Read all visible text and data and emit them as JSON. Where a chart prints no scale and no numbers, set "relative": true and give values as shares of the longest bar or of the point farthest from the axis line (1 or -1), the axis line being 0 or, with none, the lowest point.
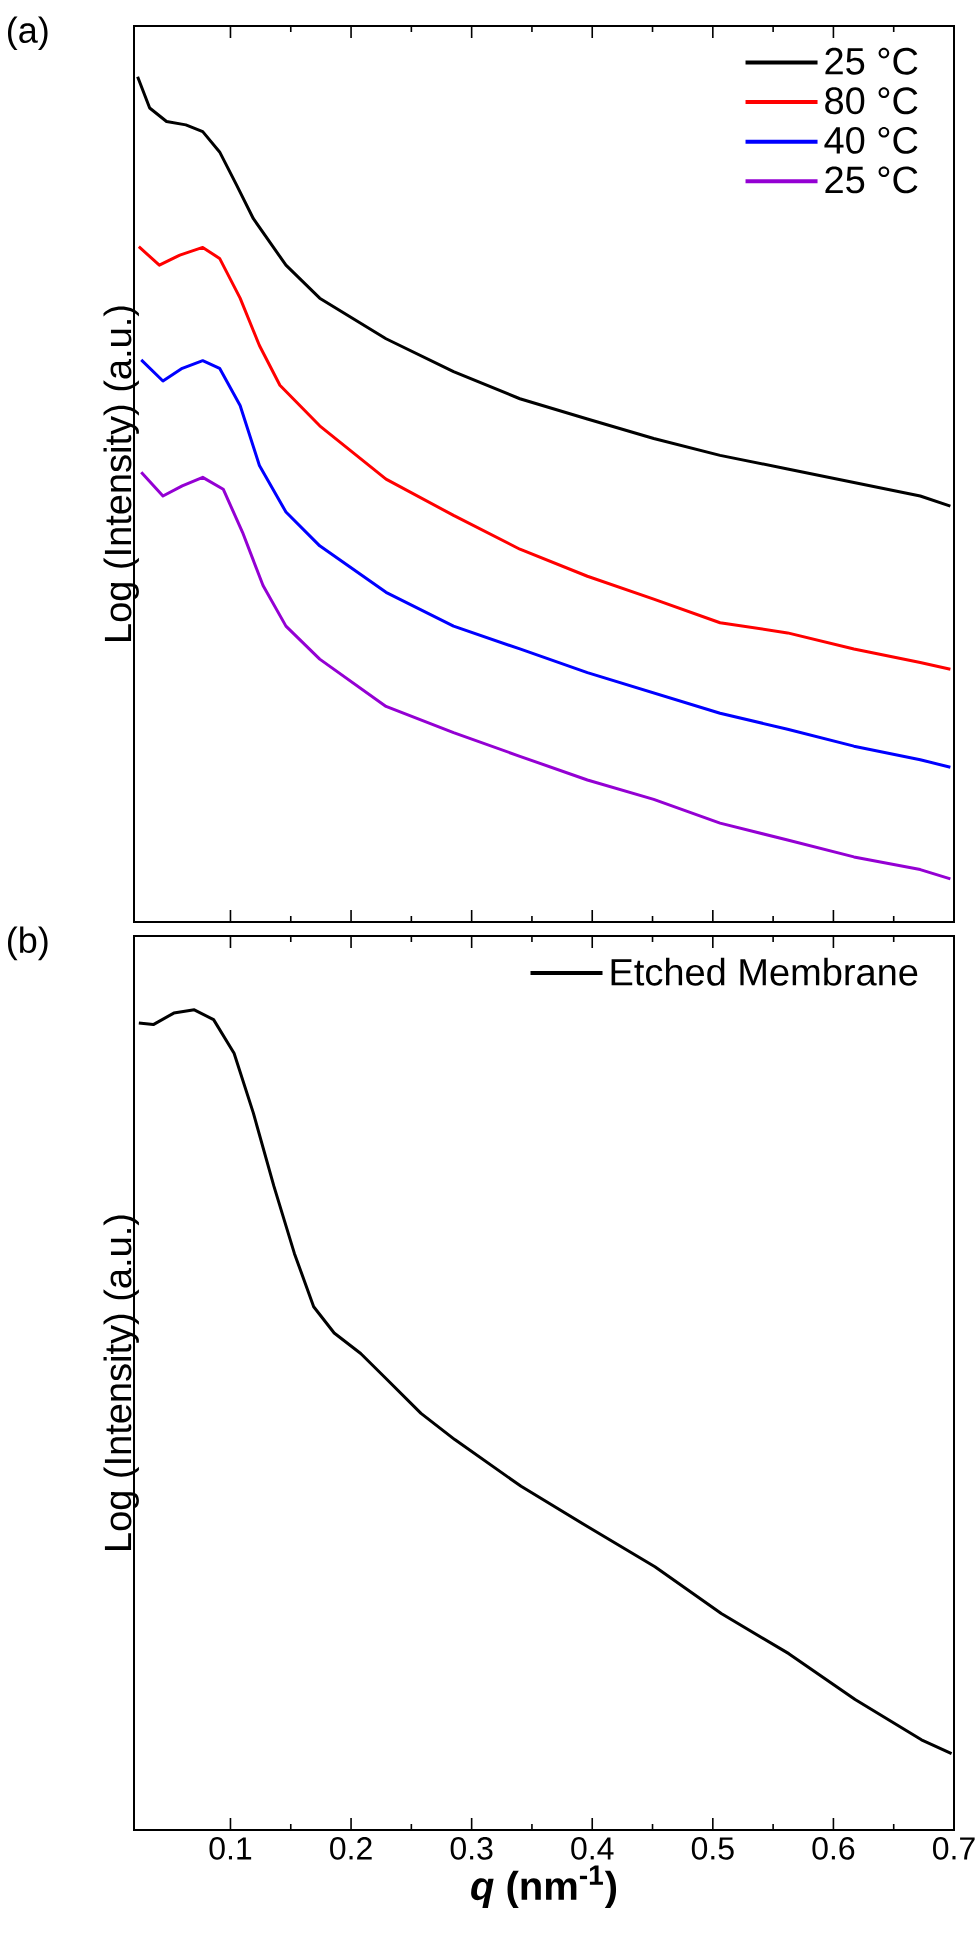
{
  "chart_data": [
    {
      "type": "line",
      "title": "(a)",
      "ylabel": "Log (Intensity) (a.u.)",
      "relative": true,
      "xlim": [
        0.02,
        0.7
      ],
      "xticks": [
        0.1,
        0.2,
        0.3,
        0.4,
        0.5,
        0.6,
        0.7
      ],
      "tick_labels": false,
      "legend": "top right",
      "grid": false,
      "line_style": "solid",
      "marker": "none",
      "series": [
        {
          "name": "25 °C",
          "color": "#000000",
          "x": [
            0.023,
            0.033,
            0.047,
            0.063,
            0.077,
            0.091,
            0.105,
            0.119,
            0.146,
            0.174,
            0.229,
            0.285,
            0.34,
            0.396,
            0.451,
            0.506,
            0.562,
            0.617,
            0.672,
            0.697
          ],
          "values": [
            1.0,
            0.963,
            0.947,
            0.943,
            0.935,
            0.911,
            0.872,
            0.832,
            0.777,
            0.738,
            0.69,
            0.651,
            0.619,
            0.595,
            0.572,
            0.552,
            0.536,
            0.52,
            0.504,
            0.492
          ]
        },
        {
          "name": "80 °C",
          "color": "#ff0000",
          "x": [
            0.024,
            0.041,
            0.058,
            0.077,
            0.091,
            0.108,
            0.124,
            0.141,
            0.174,
            0.229,
            0.285,
            0.34,
            0.396,
            0.451,
            0.506,
            0.562,
            0.617,
            0.672,
            0.697
          ],
          "values": [
            0.799,
            0.777,
            0.789,
            0.798,
            0.785,
            0.738,
            0.682,
            0.635,
            0.587,
            0.524,
            0.481,
            0.441,
            0.409,
            0.382,
            0.354,
            0.342,
            0.323,
            0.307,
            0.299
          ]
        },
        {
          "name": "40 °C",
          "color": "#0000ff",
          "x": [
            0.026,
            0.044,
            0.06,
            0.077,
            0.091,
            0.108,
            0.124,
            0.146,
            0.174,
            0.229,
            0.285,
            0.34,
            0.396,
            0.451,
            0.506,
            0.562,
            0.617,
            0.672,
            0.697
          ],
          "values": [
            0.665,
            0.64,
            0.655,
            0.664,
            0.655,
            0.611,
            0.54,
            0.485,
            0.445,
            0.39,
            0.35,
            0.323,
            0.295,
            0.271,
            0.247,
            0.228,
            0.208,
            0.192,
            0.183
          ]
        },
        {
          "name": "25 °C",
          "color": "#9400d3",
          "x": [
            0.026,
            0.044,
            0.06,
            0.077,
            0.094,
            0.11,
            0.127,
            0.146,
            0.174,
            0.229,
            0.285,
            0.34,
            0.396,
            0.451,
            0.506,
            0.562,
            0.617,
            0.672,
            0.697
          ],
          "values": [
            0.532,
            0.504,
            0.516,
            0.526,
            0.512,
            0.461,
            0.398,
            0.35,
            0.311,
            0.255,
            0.224,
            0.196,
            0.168,
            0.145,
            0.117,
            0.097,
            0.077,
            0.062,
            0.051
          ]
        }
      ]
    },
    {
      "type": "line",
      "title": "(b)",
      "xlabel": "*q* (nm$^{-1}$)",
      "ylabel": "Log (Intensity) (a.u.)",
      "relative": true,
      "xlim": [
        0.02,
        0.7
      ],
      "xticks": [
        0.1,
        0.2,
        0.3,
        0.4,
        0.5,
        0.6,
        0.7
      ],
      "tick_labels": "x",
      "legend": "top right",
      "grid": false,
      "line_style": "solid",
      "marker": "none",
      "series": [
        {
          "name": "Etched Membrane",
          "color": "#000000",
          "x": [
            0.024,
            0.036,
            0.053,
            0.07,
            0.086,
            0.103,
            0.119,
            0.136,
            0.153,
            0.169,
            0.186,
            0.208,
            0.23,
            0.258,
            0.286,
            0.341,
            0.396,
            0.452,
            0.507,
            0.563,
            0.618,
            0.673,
            0.698
          ],
          "values": [
            0.984,
            0.982,
            0.996,
            1.0,
            0.988,
            0.947,
            0.874,
            0.785,
            0.703,
            0.638,
            0.606,
            0.581,
            0.549,
            0.508,
            0.476,
            0.419,
            0.37,
            0.321,
            0.264,
            0.215,
            0.159,
            0.11,
            0.093
          ]
        }
      ]
    }
  ]
}
